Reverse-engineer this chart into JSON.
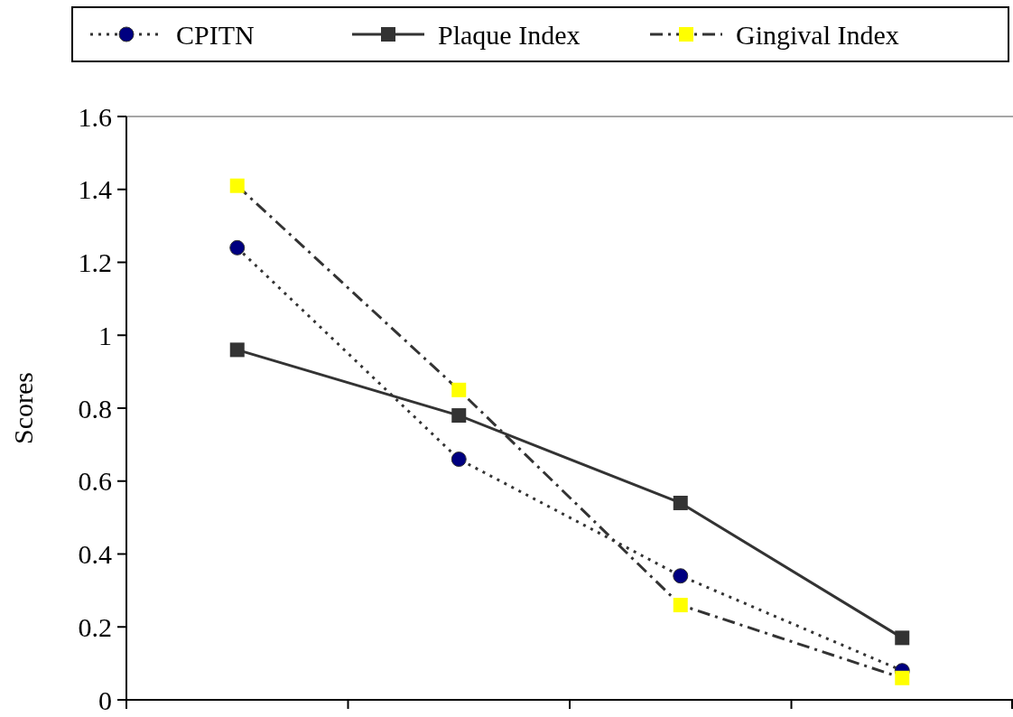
{
  "chart_data": {
    "type": "line",
    "ylabel": "Scores",
    "categories": [
      null,
      null,
      null,
      null
    ],
    "ylim": [
      0,
      1.6
    ],
    "yticks": [
      0,
      0.2,
      0.4,
      0.6,
      0.8,
      1,
      1.2,
      1.4,
      1.6
    ],
    "legend": "top",
    "grid": false,
    "series": [
      {
        "name": "CPITN",
        "color": "#000080",
        "marker": "circle",
        "line_style": "dotted",
        "values": [
          1.24,
          0.66,
          0.34,
          0.08
        ]
      },
      {
        "name": "Plaque Index",
        "color": "#333333",
        "marker": "square",
        "line_style": "solid",
        "values": [
          0.96,
          0.78,
          0.54,
          0.17
        ]
      },
      {
        "name": "Gingival Index",
        "color": "#ffff00",
        "marker": "square",
        "line_style": "dashed",
        "values": [
          1.41,
          0.85,
          0.26,
          0.06
        ]
      }
    ]
  }
}
